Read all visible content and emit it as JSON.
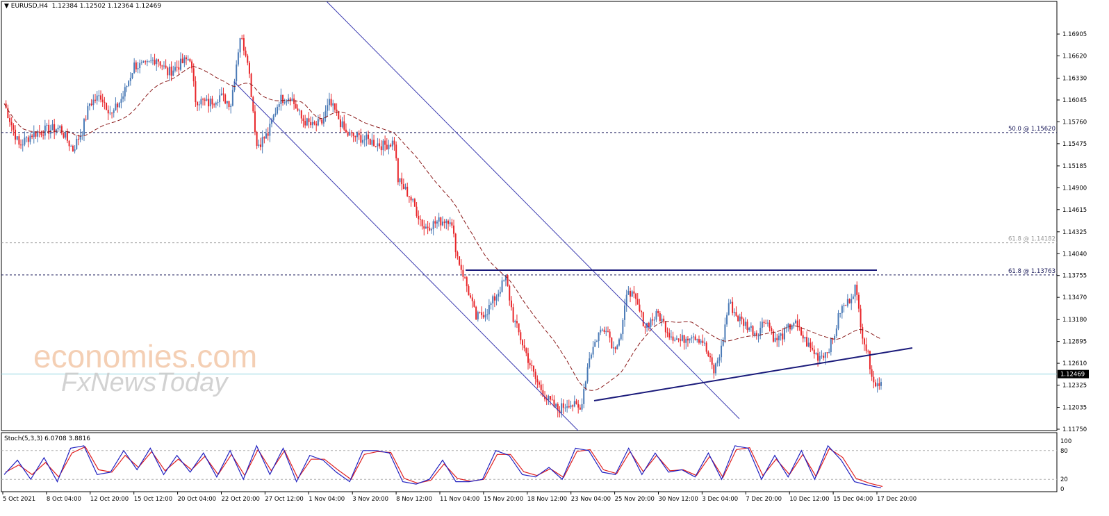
{
  "header": {
    "title": "▼ EURUSD,H4",
    "ohlc": "1.12384 1.12502 1.12364 1.12469"
  },
  "stoch": {
    "label": "Stoch(5,3,3) 6.0708 3.8816",
    "levels": [
      "100",
      "80",
      "20",
      "0"
    ]
  },
  "watermark": {
    "line1": "economies.com",
    "line2": "FxNewsToday"
  },
  "colors": {
    "bull": "#4a7ab6",
    "bear": "#e8262a",
    "ma": "#8b1a1a",
    "trend": "#1a1a7a",
    "channel": "#3a3ab0",
    "stoch_k": "#2020c0",
    "stoch_d": "#e02020",
    "current": "#8fd3e0"
  },
  "chart_data": {
    "type": "candlestick",
    "symbol": "EURUSD",
    "timeframe": "H4",
    "ylim": [
      1.1175,
      1.1715
    ],
    "y_ticks": [
      "1.16905",
      "1.16620",
      "1.16330",
      "1.16045",
      "1.15760",
      "1.15475",
      "1.15185",
      "1.14900",
      "1.14615",
      "1.14325",
      "1.14040",
      "1.13755",
      "1.13470",
      "1.13180",
      "1.12895",
      "1.12610",
      "1.12325",
      "1.12035",
      "1.11750"
    ],
    "x_ticks": [
      "5 Oct 2021",
      "8 Oct 04:00",
      "12 Oct 20:00",
      "15 Oct 12:00",
      "20 Oct 04:00",
      "22 Oct 20:00",
      "27 Oct 12:00",
      "1 Nov 04:00",
      "3 Nov 20:00",
      "8 Nov 12:00",
      "11 Nov 04:00",
      "15 Nov 20:00",
      "18 Nov 12:00",
      "23 Nov 04:00",
      "25 Nov 20:00",
      "30 Nov 12:00",
      "3 Dec 04:00",
      "7 Dec 20:00",
      "10 Dec 12:00",
      "15 Dec 04:00",
      "17 Dec 20:00"
    ],
    "current_price": "1.12469",
    "fib_levels": [
      {
        "label": "50.0 @ 1.15620",
        "value": 1.1562
      },
      {
        "label": "61.8 @ 1.14182",
        "value": 1.14182
      },
      {
        "label": "61.8 @ 1.13763",
        "value": 1.13763
      }
    ],
    "close_path": [
      [
        0,
        1.16
      ],
      [
        8,
        1.1545
      ],
      [
        15,
        1.156
      ],
      [
        22,
        1.1565
      ],
      [
        30,
        1.1568
      ],
      [
        37,
        1.154
      ],
      [
        42,
        1.1565
      ],
      [
        46,
        1.16
      ],
      [
        52,
        1.161
      ],
      [
        58,
        1.1585
      ],
      [
        64,
        1.161
      ],
      [
        70,
        1.165
      ],
      [
        76,
        1.1648
      ],
      [
        82,
        1.166
      ],
      [
        88,
        1.164
      ],
      [
        93,
        1.1648
      ],
      [
        100,
        1.166
      ],
      [
        103,
        1.1605
      ],
      [
        110,
        1.16
      ],
      [
        116,
        1.161
      ],
      [
        122,
        1.16
      ],
      [
        127,
        1.1688
      ],
      [
        131,
        1.166
      ],
      [
        136,
        1.1545
      ],
      [
        142,
        1.156
      ],
      [
        148,
        1.1605
      ],
      [
        154,
        1.161
      ],
      [
        160,
        1.158
      ],
      [
        166,
        1.157
      ],
      [
        171,
        1.1575
      ],
      [
        175,
        1.16
      ],
      [
        178,
        1.159
      ],
      [
        184,
        1.156
      ],
      [
        192,
        1.1555
      ],
      [
        198,
        1.155
      ],
      [
        204,
        1.1545
      ],
      [
        210,
        1.155
      ],
      [
        212,
        1.15
      ],
      [
        218,
        1.148
      ],
      [
        226,
        1.1438
      ],
      [
        233,
        1.1445
      ],
      [
        240,
        1.145
      ],
      [
        244,
        1.14
      ],
      [
        248,
        1.137
      ],
      [
        254,
        1.132
      ],
      [
        260,
        1.133
      ],
      [
        265,
        1.135
      ],
      [
        270,
        1.1372
      ],
      [
        274,
        1.132
      ],
      [
        280,
        1.128
      ],
      [
        286,
        1.124
      ],
      [
        292,
        1.1215
      ],
      [
        298,
        1.12
      ],
      [
        304,
        1.121
      ],
      [
        310,
        1.12
      ],
      [
        315,
        1.127
      ],
      [
        320,
        1.13
      ],
      [
        324,
        1.131
      ],
      [
        328,
        1.128
      ],
      [
        332,
        1.13
      ],
      [
        336,
        1.136
      ],
      [
        340,
        1.134
      ],
      [
        345,
        1.131
      ],
      [
        352,
        1.1325
      ],
      [
        358,
        1.13
      ],
      [
        364,
        1.129
      ],
      [
        370,
        1.13
      ],
      [
        376,
        1.129
      ],
      [
        382,
        1.125
      ],
      [
        386,
        1.128
      ],
      [
        390,
        1.134
      ],
      [
        395,
        1.132
      ],
      [
        400,
        1.131
      ],
      [
        405,
        1.13
      ],
      [
        410,
        1.132
      ],
      [
        415,
        1.129
      ],
      [
        420,
        1.13
      ],
      [
        425,
        1.1315
      ],
      [
        430,
        1.1295
      ],
      [
        434,
        1.128
      ],
      [
        438,
        1.127
      ],
      [
        442,
        1.1275
      ],
      [
        446,
        1.129
      ],
      [
        450,
        1.133
      ],
      [
        454,
        1.134
      ],
      [
        458,
        1.136
      ],
      [
        462,
        1.13
      ],
      [
        466,
        1.126
      ],
      [
        469,
        1.123
      ],
      [
        472,
        1.124
      ]
    ],
    "stoch_k": [
      30,
      60,
      20,
      65,
      15,
      85,
      90,
      30,
      35,
      80,
      40,
      85,
      30,
      70,
      35,
      75,
      25,
      80,
      20,
      90,
      30,
      85,
      15,
      70,
      60,
      35,
      15,
      80,
      80,
      75,
      15,
      10,
      20,
      60,
      15,
      15,
      20,
      80,
      70,
      30,
      25,
      45,
      20,
      85,
      80,
      35,
      30,
      85,
      30,
      75,
      35,
      40,
      25,
      75,
      20,
      90,
      85,
      20,
      70,
      25,
      80,
      20,
      90,
      60,
      15,
      8,
      2
    ],
    "stoch_d": [
      35,
      50,
      30,
      55,
      25,
      75,
      88,
      40,
      35,
      70,
      45,
      78,
      38,
      62,
      40,
      68,
      30,
      72,
      28,
      82,
      38,
      80,
      22,
      62,
      62,
      40,
      20,
      72,
      78,
      76,
      22,
      12,
      18,
      52,
      22,
      16,
      20,
      72,
      72,
      36,
      28,
      42,
      24,
      78,
      82,
      40,
      32,
      78,
      36,
      70,
      38,
      40,
      28,
      68,
      24,
      82,
      86,
      28,
      62,
      30,
      72,
      26,
      84,
      66,
      22,
      12,
      5
    ]
  }
}
